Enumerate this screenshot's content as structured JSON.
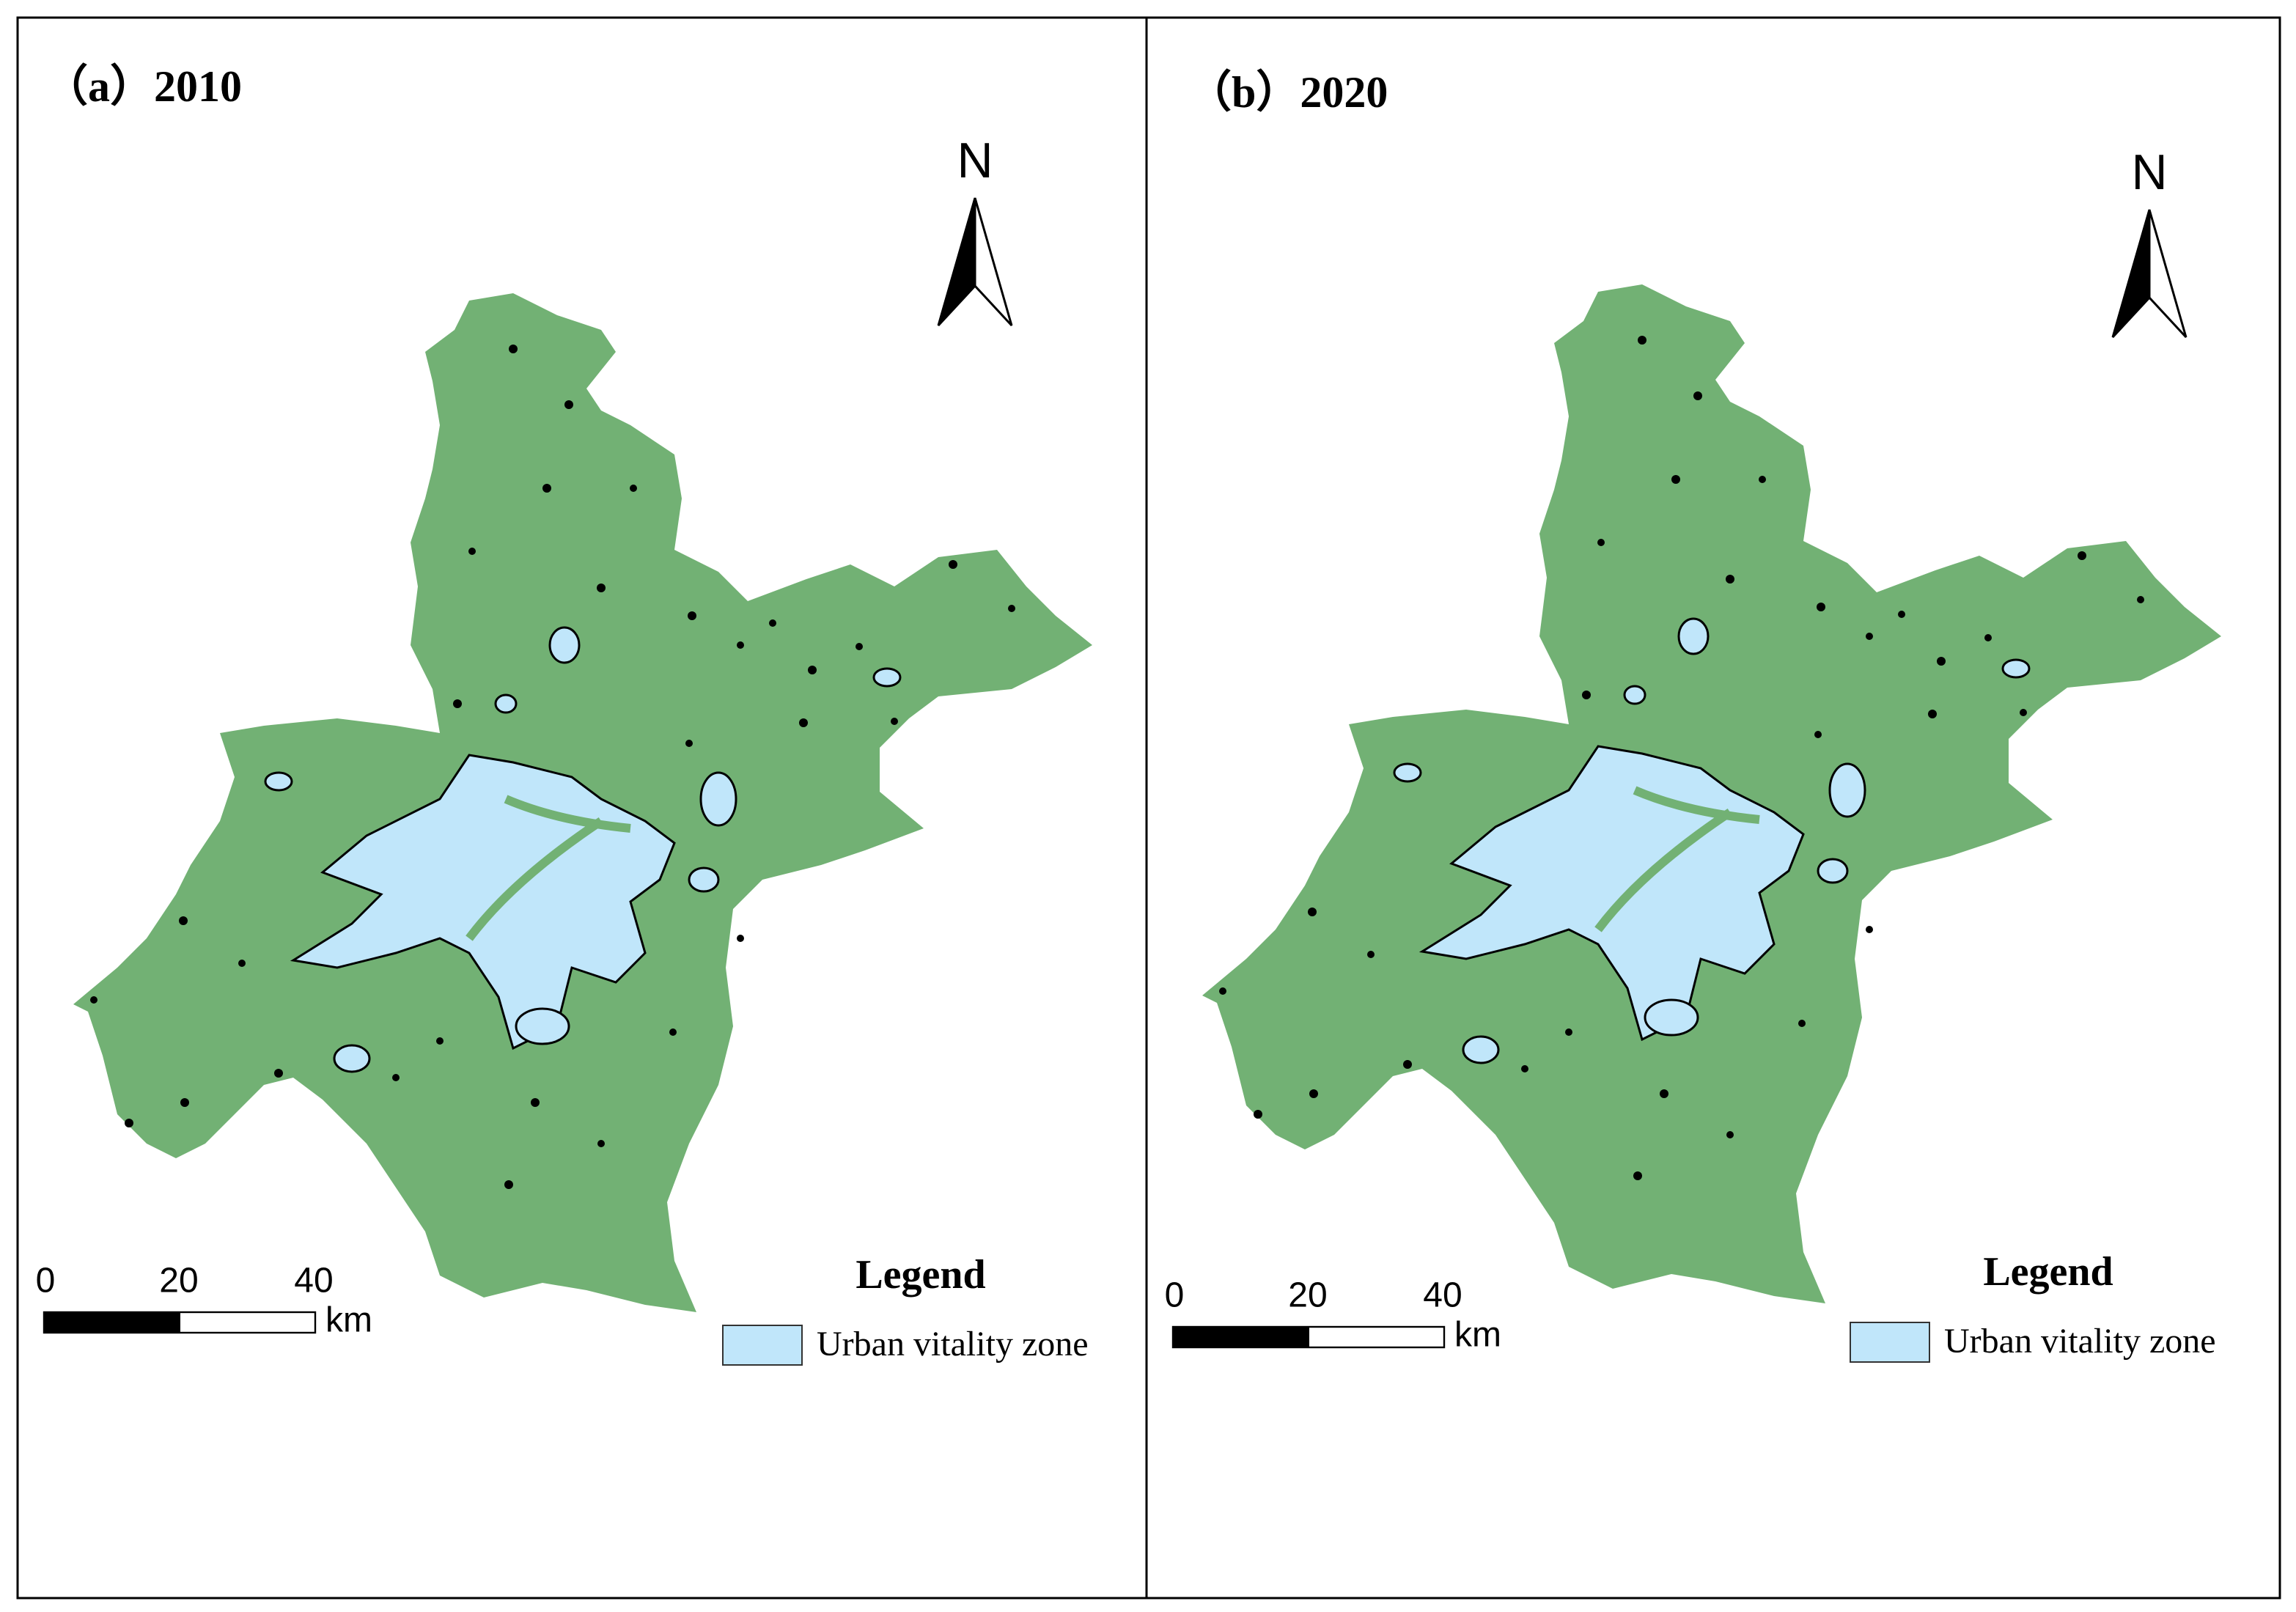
{
  "panels": [
    {
      "title": "（a）2010",
      "north": "N",
      "scale_bar": {
        "ticks": [
          "0",
          "20",
          "40"
        ],
        "unit": "km"
      },
      "legend": {
        "title": "Legend",
        "items": [
          {
            "label": "Urban vitality zone",
            "color": "#c0e6fa"
          }
        ]
      }
    },
    {
      "title": "（b）2020",
      "north": "N",
      "scale_bar": {
        "ticks": [
          "0",
          "20",
          "40"
        ],
        "unit": "km"
      },
      "legend": {
        "title": "Legend",
        "items": [
          {
            "label": "Urban vitality zone",
            "color": "#c0e6fa"
          }
        ]
      }
    }
  ]
}
